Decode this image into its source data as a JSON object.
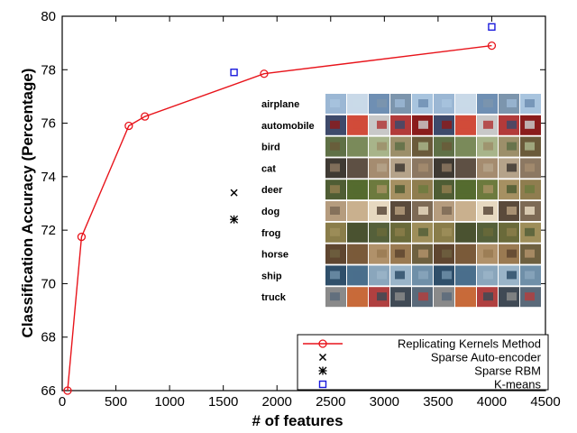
{
  "chart_data": {
    "type": "line",
    "xlabel": "# of features",
    "ylabel": "Classification Accuracy (Percentage)",
    "xlim": [
      0,
      4500
    ],
    "ylim": [
      66,
      80
    ],
    "x_ticks": [
      0,
      500,
      1000,
      1500,
      2000,
      2500,
      3000,
      3500,
      4000,
      4500
    ],
    "y_ticks": [
      66,
      68,
      70,
      72,
      74,
      76,
      78,
      80
    ],
    "grid": false,
    "legend_position": "bottom-right",
    "series": [
      {
        "name": "Replicating Kernels Method",
        "kind": "line-marker",
        "marker": "open-circle",
        "color": "#e8141b",
        "x": [
          50,
          180,
          620,
          770,
          1880,
          4000
        ],
        "y": [
          66.0,
          71.75,
          75.9,
          76.25,
          77.85,
          78.9
        ]
      },
      {
        "name": "Sparse Auto-encoder",
        "kind": "marker",
        "marker": "x",
        "color": "#000000",
        "x": [
          1600
        ],
        "y": [
          73.4
        ]
      },
      {
        "name": "Sparse RBM",
        "kind": "marker",
        "marker": "asterisk",
        "color": "#000000",
        "x": [
          1600
        ],
        "y": [
          72.4
        ]
      },
      {
        "name": "K-means",
        "kind": "marker",
        "marker": "open-square",
        "color": "#1a1adc",
        "x": [
          1600,
          4000
        ],
        "y": [
          77.9,
          79.6
        ]
      }
    ],
    "inset": {
      "description_free": true,
      "class_labels": [
        "airplane",
        "automobile",
        "bird",
        "cat",
        "deer",
        "dog",
        "frog",
        "horse",
        "ship",
        "truck"
      ],
      "class_colors": [
        [
          "#9bb7d4",
          "#6f8fb3",
          "#a8c4de",
          "#c9d9e8",
          "#7c95ad"
        ],
        [
          "#b23a3a",
          "#3e4a6b",
          "#c8c8c8",
          "#8a1c1c",
          "#d14b3a"
        ],
        [
          "#7a8a5a",
          "#9c8f6a",
          "#5f7046",
          "#a8b48a",
          "#6a5a3a"
        ],
        [
          "#8c7862",
          "#5e5044",
          "#b5a38a",
          "#3f3a33",
          "#a58c70"
        ],
        [
          "#6d7a3e",
          "#8f7d4f",
          "#556b2f",
          "#a69062",
          "#4f5d34"
        ],
        [
          "#b59c7e",
          "#e6d8c0",
          "#7d6a55",
          "#c9b08e",
          "#5a4a3b"
        ],
        [
          "#6a6a3a",
          "#8a7d4a",
          "#55603a",
          "#9e8e5a",
          "#4a5230"
        ],
        [
          "#7a5a3a",
          "#9a7a52",
          "#5f4630",
          "#b0916a",
          "#6e6040"
        ],
        [
          "#6f8fa8",
          "#4a6f8c",
          "#9ab4c8",
          "#2f4f6a",
          "#8aa6bc"
        ],
        [
          "#b04040",
          "#5a6a7a",
          "#c86a3a",
          "#404a55",
          "#8a8a8a"
        ]
      ]
    }
  }
}
